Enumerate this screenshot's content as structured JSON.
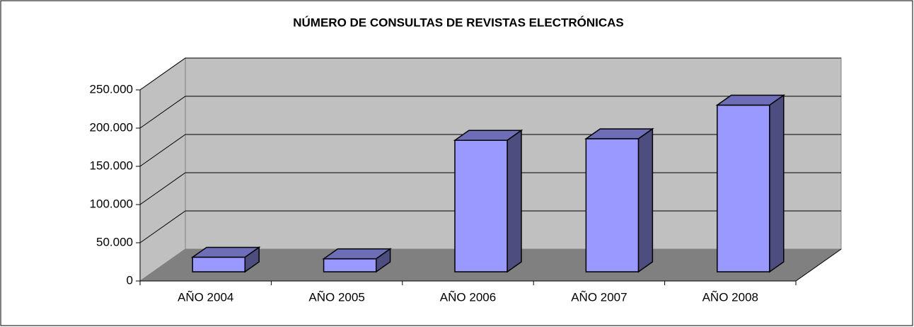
{
  "chart_data": {
    "type": "bar3d",
    "title": "NÚMERO DE CONSULTAS DE REVISTAS ELECTRÓNICAS",
    "categories": [
      "AÑO 2004",
      "AÑO 2005",
      "AÑO 2006",
      "AÑO 2007",
      "AÑO 2008"
    ],
    "values": [
      19000,
      17000,
      172000,
      174000,
      218000
    ],
    "color": "#9999ff",
    "ylim": [
      0,
      250000
    ],
    "yticks": [
      0,
      {
        "value": 50000,
        "label": "50.000"
      },
      {
        "value": 100000,
        "label": "100.000"
      },
      {
        "value": 150000,
        "label": "150.000"
      },
      {
        "value": 200000,
        "label": "200.000"
      },
      {
        "value": 250000,
        "label": "250.000"
      }
    ],
    "grid": true
  }
}
